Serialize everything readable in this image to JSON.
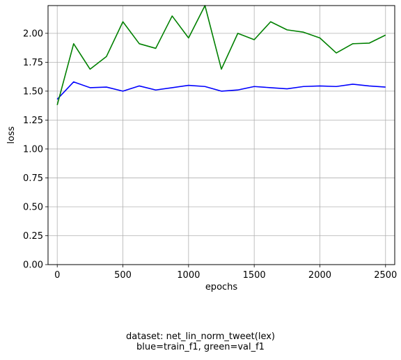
{
  "chart_data": {
    "type": "line",
    "xlabel": "epochs",
    "ylabel": "loss",
    "xlim": [
      -70,
      2570
    ],
    "ylim": [
      0,
      2.24
    ],
    "x_ticks": [
      0,
      500,
      1000,
      1500,
      2000,
      2500
    ],
    "x_tick_labels": [
      "0",
      "500",
      "1000",
      "1500",
      "2000",
      "2500"
    ],
    "y_ticks": [
      0,
      0.25,
      0.5,
      0.75,
      1.0,
      1.25,
      1.5,
      1.75,
      2.0
    ],
    "y_tick_labels": [
      "0.00",
      "0.25",
      "0.50",
      "0.75",
      "1.00",
      "1.25",
      "1.50",
      "1.75",
      "2.00"
    ],
    "grid": true,
    "x": [
      0,
      125,
      250,
      375,
      500,
      625,
      750,
      875,
      1000,
      1125,
      1250,
      1375,
      1500,
      1625,
      1750,
      1875,
      2000,
      2125,
      2250,
      2375,
      2500
    ],
    "series": [
      {
        "color": "#0000ff",
        "values": [
          1.43,
          1.58,
          1.53,
          1.535,
          1.5,
          1.545,
          1.51,
          1.53,
          1.55,
          1.54,
          1.5,
          1.51,
          1.54,
          1.53,
          1.52,
          1.54,
          1.545,
          1.54,
          1.56,
          1.545,
          1.535
        ]
      },
      {
        "color": "#008000",
        "values": [
          1.38,
          1.91,
          1.69,
          1.8,
          2.1,
          1.91,
          1.87,
          2.15,
          1.96,
          2.24,
          1.69,
          2.0,
          1.945,
          2.1,
          2.03,
          2.01,
          1.96,
          1.83,
          1.91,
          1.915,
          1.985
        ]
      }
    ]
  },
  "caption": {
    "line1": "dataset: net_lin_norm_tweet(lex)",
    "line2": "blue=train_f1, green=val_f1"
  }
}
